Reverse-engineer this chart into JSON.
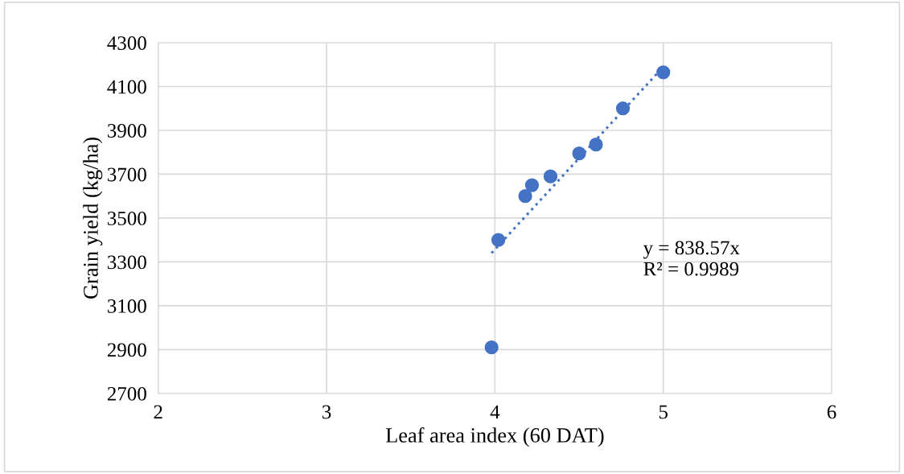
{
  "chart_data": {
    "type": "scatter",
    "xlabel": "Leaf area index (60 DAT)",
    "ylabel": "Grain yield (kg/ha)",
    "xlim": [
      2,
      6
    ],
    "xticks": [
      2,
      3,
      4,
      5,
      6
    ],
    "ylim": [
      2700,
      4300
    ],
    "yticks": [
      2700,
      2900,
      3100,
      3300,
      3500,
      3700,
      3900,
      4100,
      4300
    ],
    "grid": true,
    "marker": "circle",
    "series": [
      {
        "color": "#4472c4",
        "x": [
          3.98,
          4.02,
          4.18,
          4.22,
          4.33,
          4.5,
          4.6,
          4.76,
          5.0
        ],
        "values": [
          2910,
          3400,
          3600,
          3650,
          3690,
          3795,
          3835,
          4000,
          4165
        ]
      },
      {
        "type": "line",
        "line_style": "dotted",
        "marker": "none",
        "color": "#4472c4",
        "x": [
          3.98,
          5.0
        ],
        "values": [
          3340,
          4190
        ]
      }
    ],
    "annotations": [
      "y = 838.57x\nR² = 0.9989"
    ]
  }
}
